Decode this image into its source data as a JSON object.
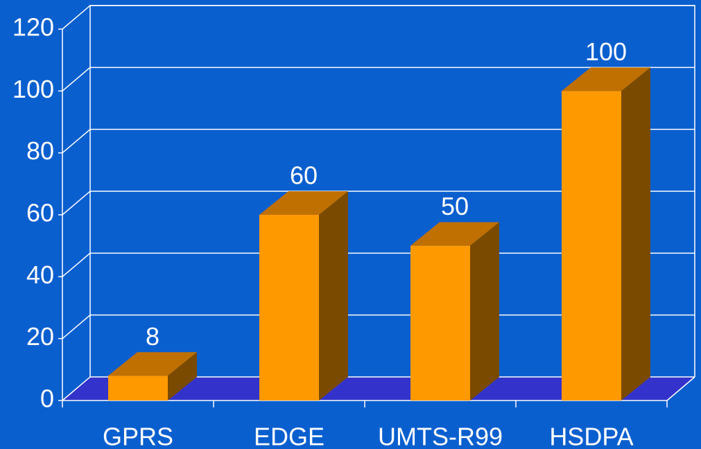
{
  "chart_data": {
    "type": "bar3d",
    "categories": [
      "GPRS",
      "EDGE",
      "UMTS-R99",
      "HSDPA"
    ],
    "values": [
      8,
      60,
      50,
      100
    ],
    "color": "#ff9900",
    "side_color": "#7a4a00",
    "top_color": "#c07000",
    "floor_color": "#3333cc",
    "ylim": [
      0,
      120
    ],
    "yticks": [
      0,
      20,
      40,
      60,
      80,
      100,
      120
    ],
    "grid": true
  }
}
